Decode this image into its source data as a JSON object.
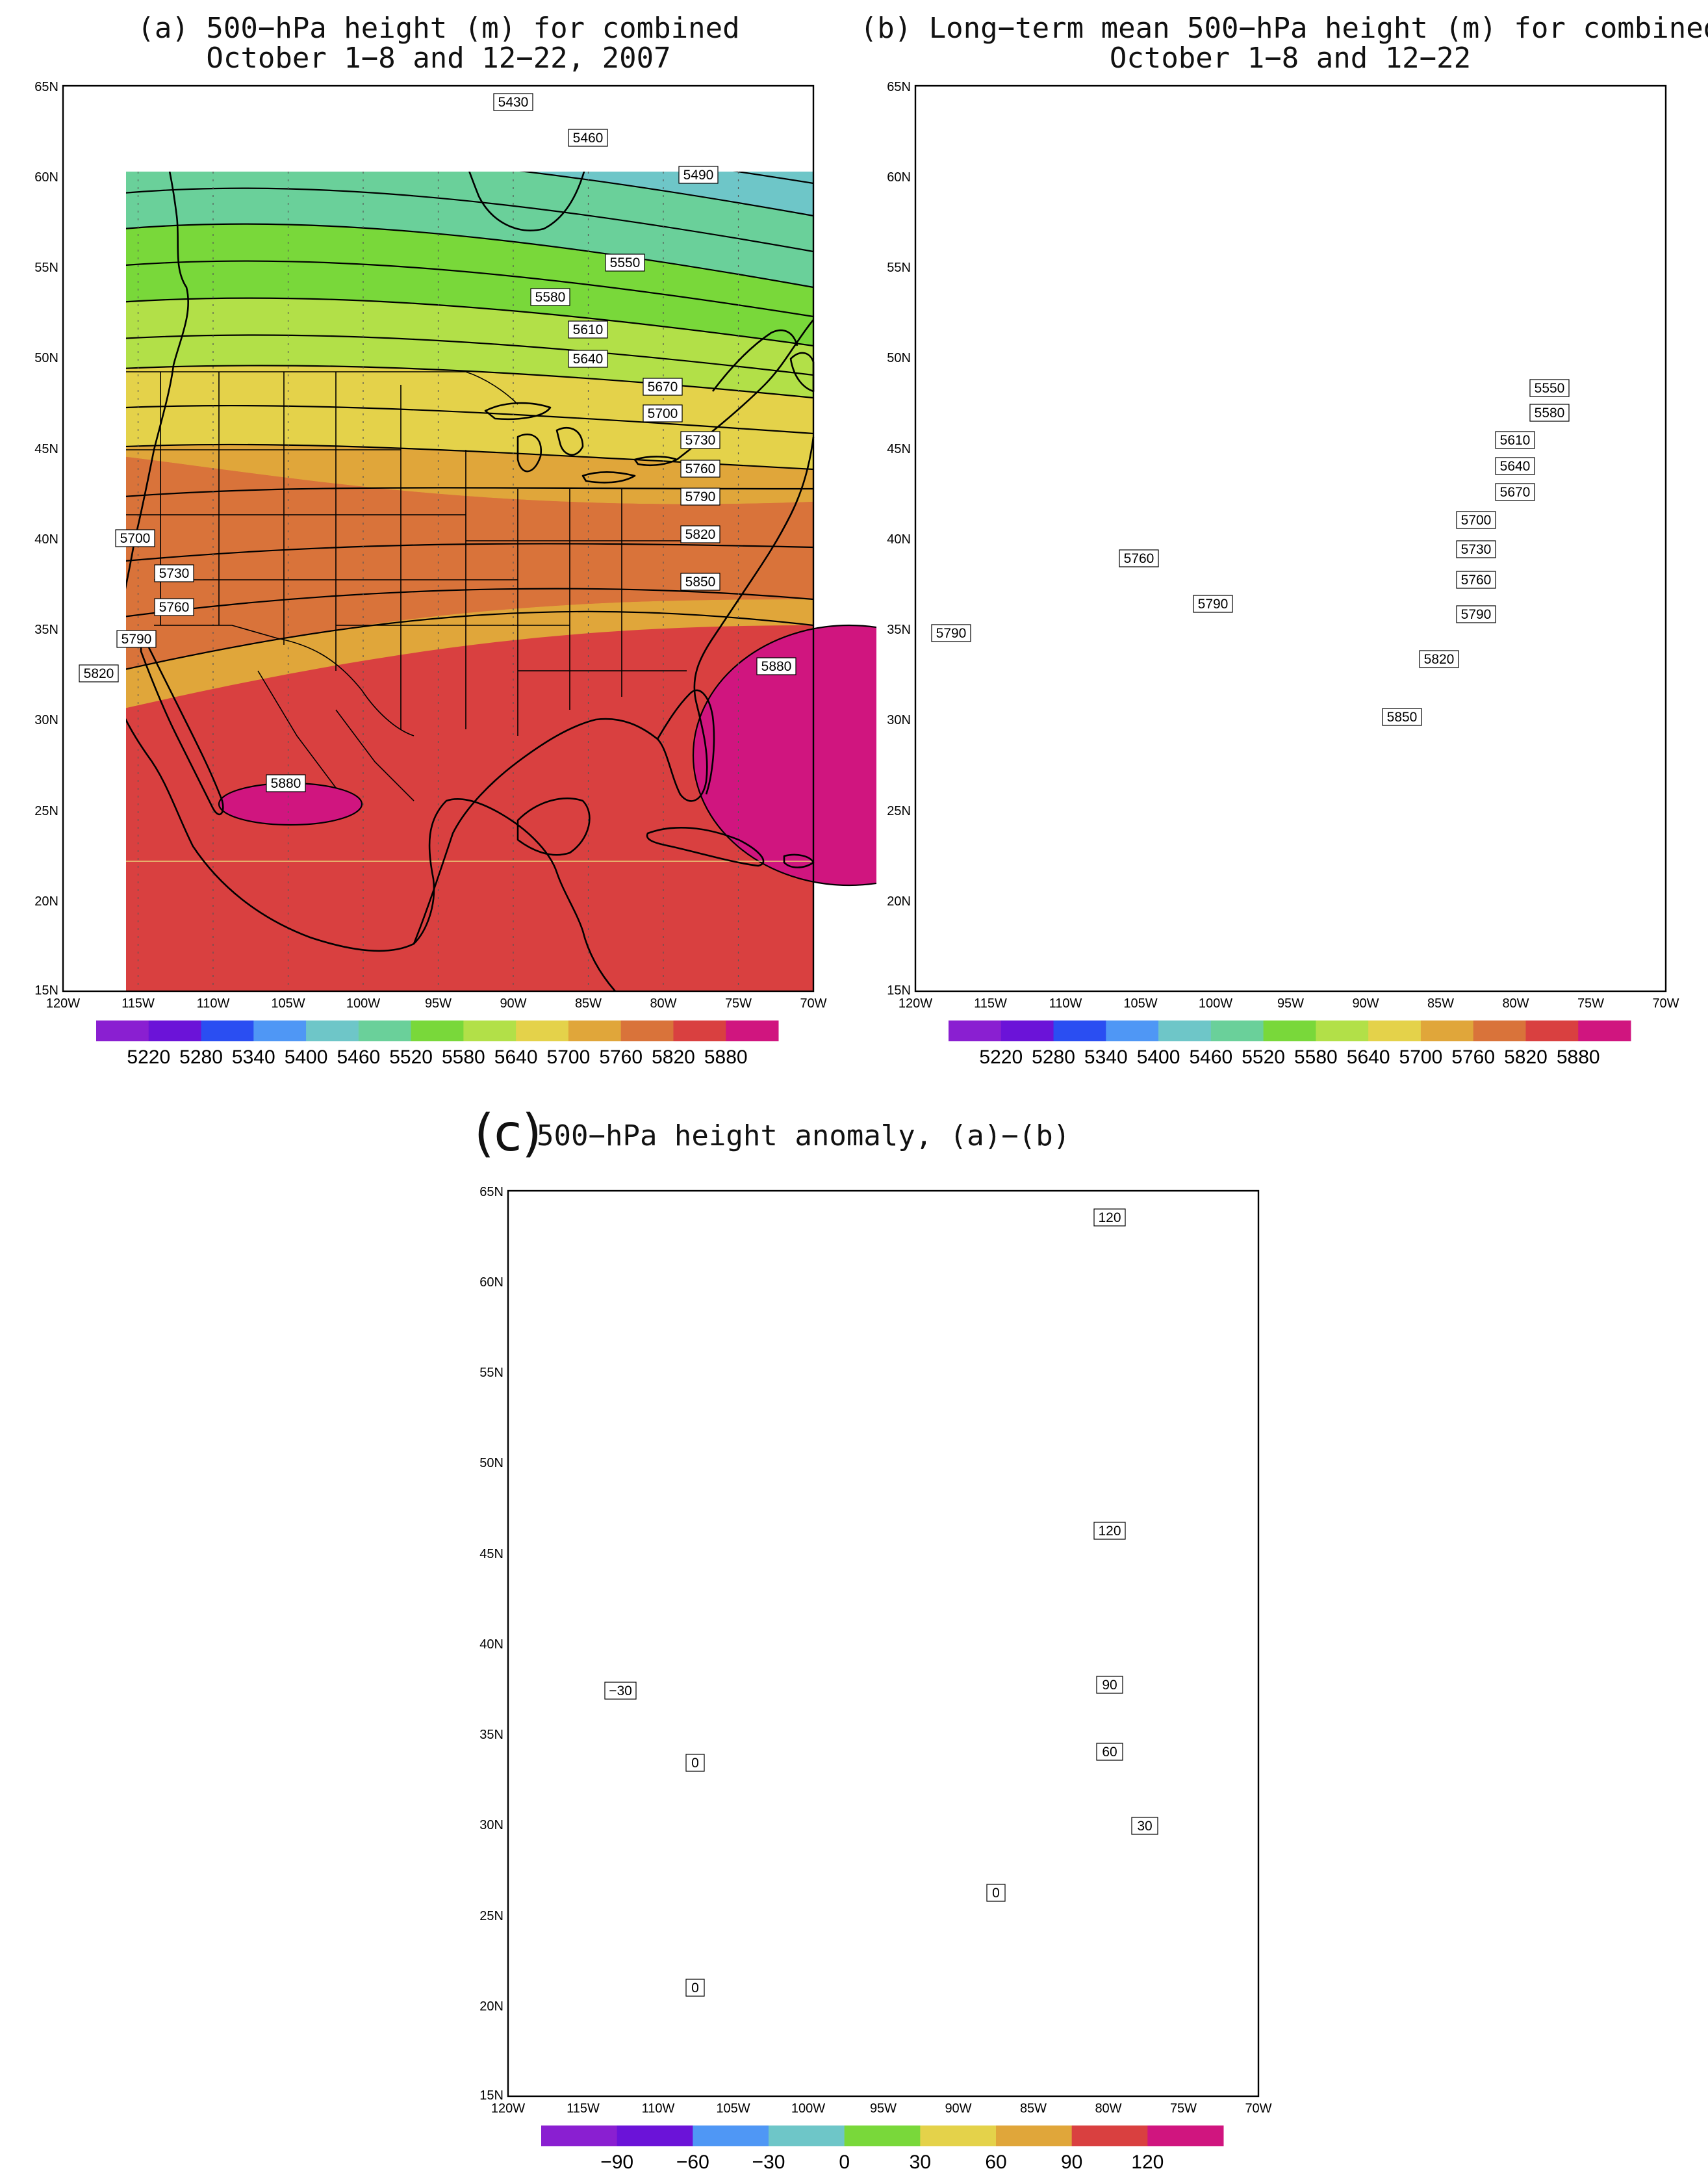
{
  "panels": [
    {
      "id": "a",
      "title_line1": "(a) 500−hPa height (m) for combined",
      "title_line2": "October 1−8 and 12−22, 2007",
      "contour_labels": [
        "5430",
        "5460",
        "5490",
        "5550",
        "5580",
        "5610",
        "5640",
        "5670",
        "5700",
        "5730",
        "5760",
        "5790",
        "5820",
        "5850",
        "5880",
        "5700",
        "5730",
        "5760",
        "5790",
        "5820",
        "5880"
      ],
      "colorbar_labels": [
        "5220",
        "5280",
        "5340",
        "5400",
        "5460",
        "5520",
        "5580",
        "5640",
        "5700",
        "5760",
        "5820",
        "5880"
      ],
      "features": [
        "closed 5880 m high over northern Mexico",
        "closed 5880 m high over western Atlantic"
      ]
    },
    {
      "id": "b",
      "title_line1": "(b) Long−term mean 500−hPa height (m) for combined",
      "title_line2": "October 1−8 and 12−22",
      "contour_labels": [
        "5550",
        "5580",
        "5610",
        "5640",
        "5670",
        "5700",
        "5730",
        "5760",
        "5790",
        "5820",
        "5850",
        "5760",
        "5790",
        "5790"
      ],
      "colorbar_labels": [
        "5220",
        "5280",
        "5340",
        "5400",
        "5460",
        "5520",
        "5580",
        "5640",
        "5700",
        "5760",
        "5820",
        "5880"
      ]
    },
    {
      "id": "c",
      "title_letter": "(c)",
      "title_text": "500−hPa height anomaly, (a)−(b)",
      "contour_labels": [
        "120",
        "120",
        "90",
        "60",
        "30",
        "0",
        "0",
        "0",
        "−30"
      ],
      "colorbar_labels": [
        "−90",
        "−60",
        "−30",
        "0",
        "30",
        "60",
        "90",
        "120"
      ]
    }
  ],
  "axes": {
    "lat_ticks": [
      "65N",
      "60N",
      "55N",
      "50N",
      "45N",
      "40N",
      "35N",
      "30N",
      "25N",
      "20N",
      "15N"
    ],
    "lon_ticks": [
      "120W",
      "115W",
      "110W",
      "105W",
      "100W",
      "95W",
      "90W",
      "85W",
      "80W",
      "75W",
      "70W"
    ]
  },
  "colors": {
    "height_scale": [
      "#8a1fd1",
      "#6b13d8",
      "#2a4ef2",
      "#4f97f5",
      "#6ec6c8",
      "#6ad09a",
      "#79d83a",
      "#b2e048",
      "#e4d24a",
      "#e0a63a",
      "#d9733a",
      "#d94040",
      "#d0157f"
    ],
    "anomaly_scale": [
      "#8a1fd1",
      "#6b13d8",
      "#4f97f5",
      "#6ec6c8",
      "#79d83a",
      "#e4d24a",
      "#e0a63a",
      "#d94040",
      "#d0157f"
    ]
  }
}
